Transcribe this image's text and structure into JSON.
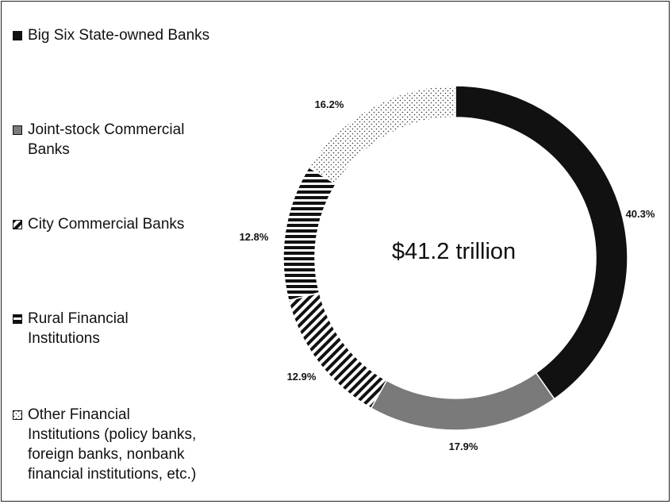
{
  "chart_data": {
    "type": "pie",
    "donut": true,
    "center_label": "$41.2 trillion",
    "categories": [
      "Big Six State-owned Banks",
      "Joint-stock Commercial Banks",
      "City Commercial Banks",
      "Rural Financial Institutions",
      "Other Financial Institutions (policy banks, foreign banks, nonbank financial institutions, etc.)"
    ],
    "values": [
      40.3,
      17.9,
      12.9,
      12.8,
      16.2
    ],
    "value_labels": [
      "40.3%",
      "17.9%",
      "12.9%",
      "12.8%",
      "16.2%"
    ],
    "legend_lines": [
      "Big Six State-owned Banks",
      "Joint-stock Commercial\nBanks",
      "City Commercial Banks",
      "Rural Financial\nInstitutions",
      "Other Financial\nInstitutions (policy banks,\nforeign banks, nonbank\nfinancial institutions, etc.)"
    ],
    "fills": [
      "solid",
      "solid",
      "diagonal-stripes",
      "horizontal-stripes",
      "dots"
    ],
    "colors": [
      "#111111",
      "#7a7a7a",
      "#111111",
      "#111111",
      "#333333"
    ],
    "legend_position": "left"
  }
}
